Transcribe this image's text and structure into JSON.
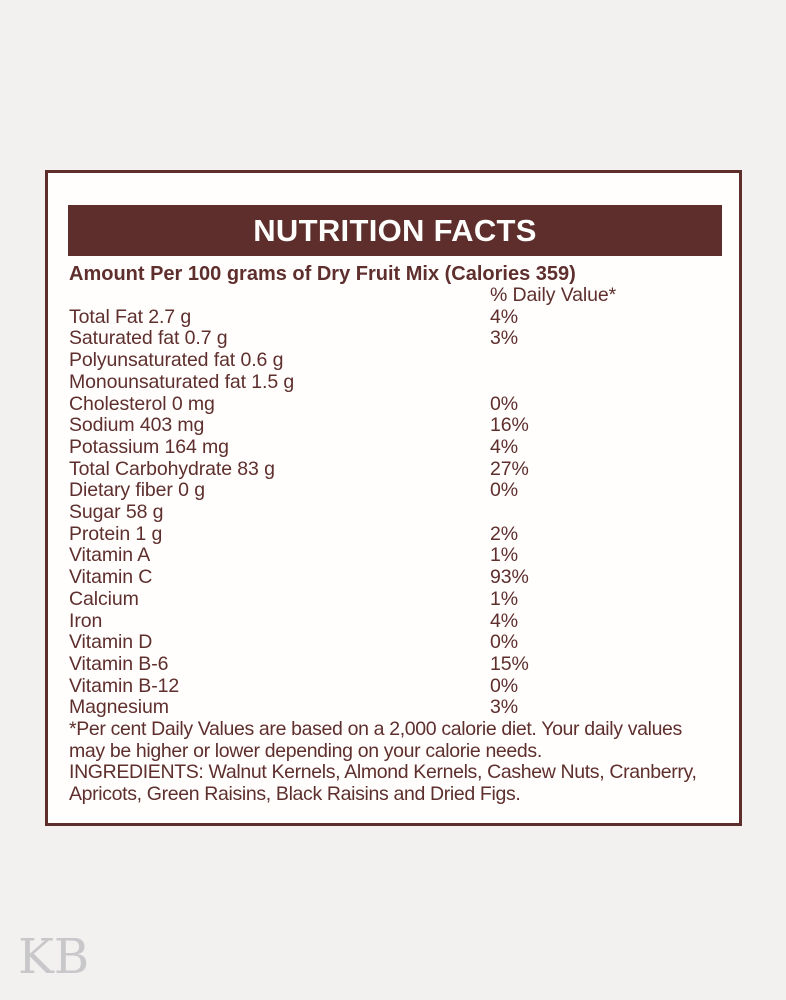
{
  "page": {
    "watermark": "KB"
  },
  "colors": {
    "maroon": "#5d2e2c",
    "text": "#5e2f2d",
    "page_bg": "#f2f1f0",
    "card_bg": "#fffefd",
    "header_text": "#fdfdfc",
    "watermark": "#c8c7c9"
  },
  "label": {
    "title": "NUTRITION FACTS",
    "subtitle": "Amount Per 100 grams of Dry Fruit Mix (Calories 359)",
    "column_header": "% Daily Value*",
    "rows": [
      {
        "name": "Total Fat 2.7 g",
        "daily_value": "4%"
      },
      {
        "name": "Saturated fat 0.7 g",
        "daily_value": "3%"
      },
      {
        "name": "Polyunsaturated fat 0.6 g",
        "daily_value": ""
      },
      {
        "name": "Monounsaturated fat 1.5 g",
        "daily_value": ""
      },
      {
        "name": "Cholesterol 0 mg",
        "daily_value": "0%"
      },
      {
        "name": "Sodium 403 mg",
        "daily_value": "16%"
      },
      {
        "name": "Potassium 164 mg",
        "daily_value": "4%"
      },
      {
        "name": "Total Carbohydrate 83 g",
        "daily_value": "27%"
      },
      {
        "name": "Dietary fiber 0 g",
        "daily_value": "0%"
      },
      {
        "name": "Sugar 58 g",
        "daily_value": ""
      },
      {
        "name": "Protein 1 g",
        "daily_value": "2%"
      },
      {
        "name": "Vitamin A",
        "daily_value": "1%"
      },
      {
        "name": "Vitamin C",
        "daily_value": "93%"
      },
      {
        "name": "Calcium",
        "daily_value": "1%"
      },
      {
        "name": "Iron",
        "daily_value": "4%"
      },
      {
        "name": "Vitamin D",
        "daily_value": "0%"
      },
      {
        "name": "Vitamin B-6",
        "daily_value": "15%"
      },
      {
        "name": "Vitamin B-12",
        "daily_value": "0%"
      },
      {
        "name": "Magnesium",
        "daily_value": "3%"
      }
    ],
    "footnote_lines": [
      "*Per cent Daily Values are based on a 2,000 calorie diet. Your daily values",
      "may be higher or lower depending on your calorie needs."
    ],
    "ingredients_lines": [
      "INGREDIENTS: Walnut Kernels, Almond Kernels, Cashew Nuts, Cranberry,",
      "Apricots, Green Raisins, Black Raisins and Dried Figs."
    ]
  }
}
